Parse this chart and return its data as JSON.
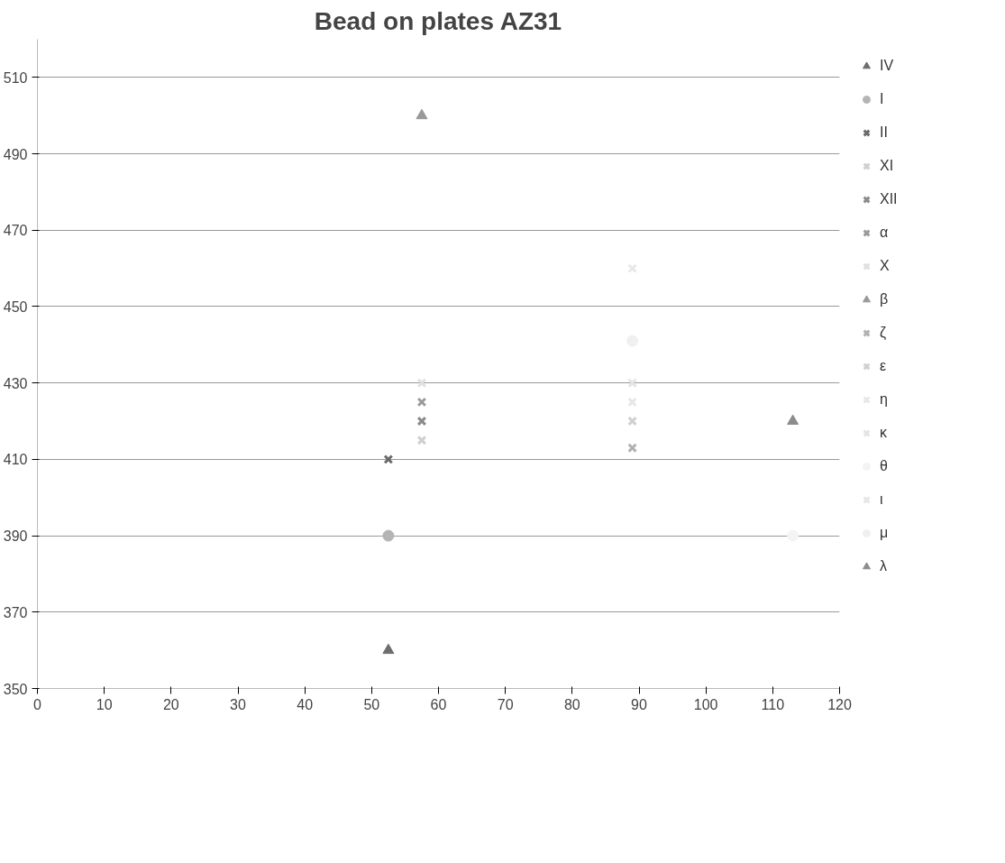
{
  "chart_data": {
    "type": "scatter",
    "title": "Bead on plates AZ31",
    "xlim": [
      0,
      120
    ],
    "ylim": [
      350,
      520
    ],
    "xticks": [
      0,
      10,
      20,
      30,
      40,
      50,
      60,
      70,
      80,
      90,
      100,
      110,
      120
    ],
    "yticks": [
      350,
      370,
      390,
      410,
      430,
      450,
      470,
      490,
      510
    ],
    "grid": "y",
    "legend": "right",
    "series": [
      {
        "name": "IV",
        "color": "#6e6e6e",
        "marker": "triangle",
        "x": [
          52.5
        ],
        "values": [
          360
        ]
      },
      {
        "name": "I",
        "color": "#b4b4b4",
        "marker": "circle",
        "x": [
          52.5
        ],
        "values": [
          390
        ]
      },
      {
        "name": "II",
        "color": "#6a6a6a",
        "marker": "cross",
        "x": [
          52.5
        ],
        "values": [
          410
        ]
      },
      {
        "name": "XI",
        "color": "#cfcfcf",
        "marker": "cross",
        "x": [
          57.5
        ],
        "values": [
          415
        ]
      },
      {
        "name": "XII",
        "color": "#8a8a8a",
        "marker": "cross",
        "x": [
          57.5
        ],
        "values": [
          420
        ]
      },
      {
        "name": "α",
        "color": "#9a9a9a",
        "marker": "cross",
        "x": [
          57.5
        ],
        "values": [
          425
        ]
      },
      {
        "name": "X",
        "color": "#e0e0e0",
        "marker": "cross",
        "x": [
          57.5
        ],
        "values": [
          430
        ]
      },
      {
        "name": "β",
        "color": "#999999",
        "marker": "triangle",
        "x": [
          57.5
        ],
        "values": [
          500
        ]
      },
      {
        "name": "ζ",
        "color": "#b0b0b0",
        "marker": "cross",
        "x": [
          89
        ],
        "values": [
          413
        ]
      },
      {
        "name": "ε",
        "color": "#d0d0d0",
        "marker": "cross",
        "x": [
          89
        ],
        "values": [
          420
        ]
      },
      {
        "name": "η",
        "color": "#e8e8e8",
        "marker": "cross",
        "x": [
          89
        ],
        "values": [
          460
        ]
      },
      {
        "name": "κ",
        "color": "#e4e4e4",
        "marker": "cross",
        "x": [
          89
        ],
        "values": [
          430
        ]
      },
      {
        "name": "θ",
        "color": "#f4f4f4",
        "marker": "circle",
        "x": [
          113
        ],
        "values": [
          390
        ]
      },
      {
        "name": "ι",
        "color": "#e6e6e6",
        "marker": "cross",
        "x": [
          89
        ],
        "values": [
          425
        ]
      },
      {
        "name": "μ",
        "color": "#f0f0f0",
        "marker": "circle",
        "x": [
          89
        ],
        "values": [
          441
        ]
      },
      {
        "name": "λ",
        "color": "#8c8c8c",
        "marker": "triangle",
        "x": [
          113
        ],
        "values": [
          420
        ]
      }
    ]
  }
}
